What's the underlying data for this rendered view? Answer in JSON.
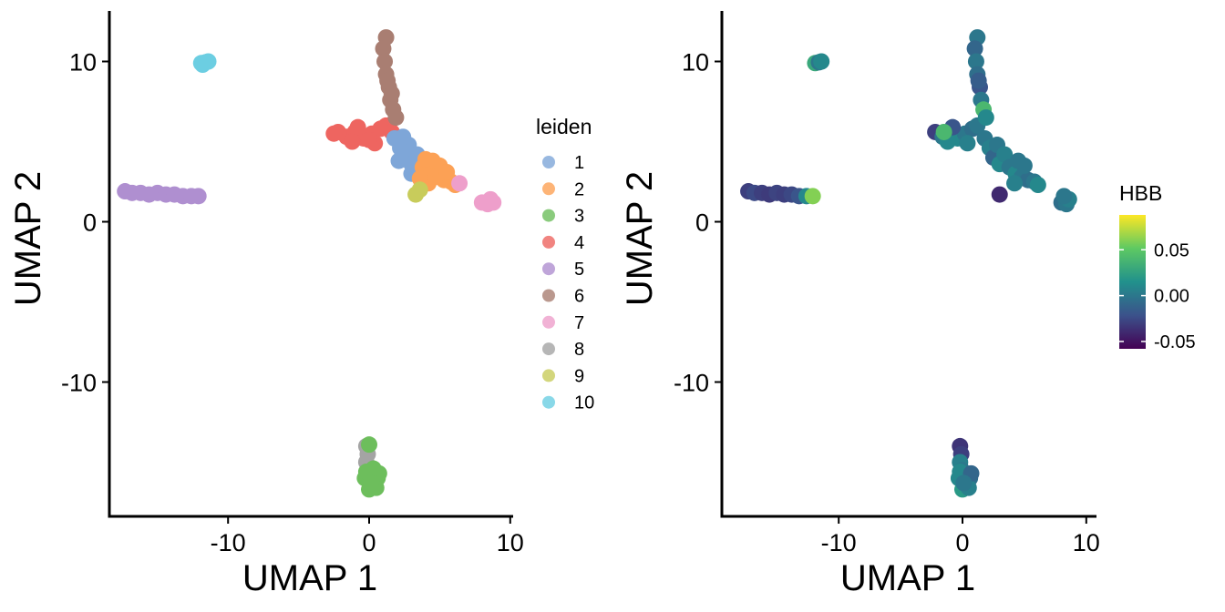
{
  "colors": {
    "clusters": {
      "1": "#7ea6d8",
      "2": "#fca155",
      "3": "#6dbe5c",
      "4": "#ee6560",
      "5": "#af8fd0",
      "6": "#a97e72",
      "7": "#ee9fcb",
      "8": "#a4a4a4",
      "9": "#c8cc5b",
      "10": "#6ccee2"
    },
    "viridis": [
      "#440154",
      "#3b528b",
      "#21918c",
      "#5ec962",
      "#fde725"
    ]
  },
  "chart_data": [
    {
      "type": "scatter",
      "xlabel": "UMAP 1",
      "ylabel": "UMAP 2",
      "xlim": [
        -18.5,
        10.3
      ],
      "ylim": [
        -18.5,
        13.2
      ],
      "xticks": [
        -10,
        0,
        10
      ],
      "xtick_labels": [
        "-10",
        "0",
        "10"
      ],
      "yticks": [
        -10,
        0,
        10
      ],
      "ytick_labels": [
        "-10",
        "0",
        "10"
      ],
      "grid": false,
      "legend": {
        "title": "leiden",
        "position": "right",
        "entries": [
          "1",
          "2",
          "3",
          "4",
          "5",
          "6",
          "7",
          "8",
          "9",
          "10"
        ]
      },
      "clusters": [
        {
          "name": "5",
          "points": [
            [
              -17.3,
              1.9
            ],
            [
              -16.8,
              1.8
            ],
            [
              -16.2,
              1.8
            ],
            [
              -15.6,
              1.7
            ],
            [
              -15.0,
              1.8
            ],
            [
              -14.4,
              1.7
            ],
            [
              -13.8,
              1.7
            ],
            [
              -13.2,
              1.6
            ],
            [
              -12.6,
              1.6
            ],
            [
              -12.1,
              1.6
            ]
          ]
        },
        {
          "name": "10",
          "points": [
            [
              -11.9,
              9.9
            ],
            [
              -11.6,
              9.95
            ],
            [
              -11.4,
              10.0
            ],
            [
              -11.8,
              9.8
            ]
          ]
        },
        {
          "name": "4",
          "points": [
            [
              -2.2,
              5.6
            ],
            [
              -1.6,
              5.3
            ],
            [
              -1.0,
              5.6
            ],
            [
              -0.4,
              5.2
            ],
            [
              0.2,
              5.5
            ],
            [
              0.8,
              5.8
            ],
            [
              1.2,
              6.0
            ],
            [
              -1.2,
              5.0
            ],
            [
              0.4,
              4.9
            ],
            [
              -2.5,
              5.5
            ],
            [
              1.6,
              5.6
            ],
            [
              -0.8,
              5.9
            ],
            [
              0.0,
              5.1
            ]
          ]
        },
        {
          "name": "6",
          "points": [
            [
              1.2,
              11.5
            ],
            [
              1.0,
              10.8
            ],
            [
              1.1,
              10.0
            ],
            [
              1.2,
              9.2
            ],
            [
              1.4,
              8.4
            ],
            [
              1.5,
              7.6
            ],
            [
              1.7,
              7.0
            ],
            [
              1.9,
              6.5
            ],
            [
              1.3,
              8.8
            ],
            [
              1.6,
              8.0
            ]
          ]
        },
        {
          "name": "1",
          "points": [
            [
              1.8,
              5.2
            ],
            [
              2.2,
              4.6
            ],
            [
              2.5,
              4.0
            ],
            [
              3.0,
              3.6
            ],
            [
              2.1,
              3.8
            ],
            [
              2.8,
              4.8
            ],
            [
              3.4,
              4.2
            ],
            [
              3.0,
              3.0
            ],
            [
              2.4,
              5.3
            ],
            [
              3.6,
              3.4
            ]
          ]
        },
        {
          "name": "2",
          "points": [
            [
              3.8,
              3.4
            ],
            [
              4.3,
              3.0
            ],
            [
              4.8,
              2.8
            ],
            [
              5.3,
              2.6
            ],
            [
              5.8,
              2.5
            ],
            [
              4.2,
              2.4
            ],
            [
              5.0,
              3.5
            ],
            [
              4.5,
              3.8
            ],
            [
              6.1,
              2.3
            ],
            [
              3.6,
              2.7
            ],
            [
              5.5,
              3.1
            ],
            [
              4.0,
              3.9
            ]
          ]
        },
        {
          "name": "9",
          "points": [
            [
              3.3,
              1.7
            ],
            [
              3.6,
              2.0
            ]
          ]
        },
        {
          "name": "7",
          "points": [
            [
              8.0,
              1.2
            ],
            [
              8.4,
              1.1
            ],
            [
              8.6,
              1.4
            ],
            [
              6.4,
              2.4
            ],
            [
              8.8,
              1.2
            ]
          ]
        },
        {
          "name": "8",
          "points": [
            [
              -0.2,
              -14.0
            ],
            [
              -0.1,
              -14.5
            ],
            [
              -0.2,
              -15.0
            ],
            [
              -0.05,
              -15.5
            ]
          ]
        },
        {
          "name": "3",
          "points": [
            [
              -0.3,
              -16.0
            ],
            [
              0.3,
              -16.2
            ],
            [
              0.6,
              -16.0
            ],
            [
              0.0,
              -16.7
            ],
            [
              0.5,
              -16.6
            ],
            [
              -0.2,
              -15.6
            ],
            [
              0.7,
              -15.7
            ],
            [
              0.3,
              -15.4
            ],
            [
              0.1,
              -16.3
            ],
            [
              0.0,
              -13.9
            ]
          ]
        }
      ]
    },
    {
      "type": "scatter",
      "xlabel": "UMAP 1",
      "ylabel": "UMAP 2",
      "xlim": [
        -18.5,
        10.3
      ],
      "ylim": [
        -18.5,
        13.2
      ],
      "xticks": [
        -10,
        0,
        10
      ],
      "xtick_labels": [
        "-10",
        "0",
        "10"
      ],
      "yticks": [
        -10,
        0,
        10
      ],
      "ytick_labels": [
        "-10",
        "0",
        "10"
      ],
      "grid": false,
      "colorbar": {
        "title": "HBB",
        "range": [
          -0.058,
          0.088
        ],
        "ticks": [
          -0.05,
          0.0,
          0.05
        ],
        "tick_labels": [
          "-0.05",
          "0.00",
          "0.05"
        ],
        "position": "right"
      },
      "points": [
        [
          -17.3,
          1.9,
          -0.03
        ],
        [
          -16.8,
          1.8,
          -0.025
        ],
        [
          -16.2,
          1.8,
          -0.03
        ],
        [
          -15.6,
          1.7,
          -0.032
        ],
        [
          -15.0,
          1.8,
          -0.028
        ],
        [
          -14.4,
          1.7,
          -0.03
        ],
        [
          -13.8,
          1.7,
          -0.026
        ],
        [
          -13.2,
          1.6,
          -0.02
        ],
        [
          -12.6,
          1.6,
          0.01
        ],
        [
          -12.1,
          1.6,
          0.06
        ],
        [
          -11.9,
          9.9,
          0.03
        ],
        [
          -11.6,
          9.95,
          0.0
        ],
        [
          -11.4,
          10.0,
          0.01
        ],
        [
          -2.2,
          5.6,
          -0.03
        ],
        [
          -1.6,
          5.3,
          0.0
        ],
        [
          -1.0,
          5.6,
          -0.01
        ],
        [
          -0.4,
          5.2,
          0.01
        ],
        [
          0.2,
          5.5,
          0.0
        ],
        [
          0.8,
          5.8,
          -0.005
        ],
        [
          1.2,
          6.0,
          0.0
        ],
        [
          -1.2,
          5.0,
          0.01
        ],
        [
          0.4,
          4.9,
          0.005
        ],
        [
          -0.8,
          5.9,
          -0.02
        ],
        [
          -1.5,
          5.6,
          0.04
        ],
        [
          1.2,
          11.5,
          0.0
        ],
        [
          1.0,
          10.8,
          -0.01
        ],
        [
          1.1,
          10.0,
          0.0
        ],
        [
          1.2,
          9.2,
          -0.005
        ],
        [
          1.4,
          8.4,
          -0.02
        ],
        [
          1.5,
          7.6,
          0.0
        ],
        [
          1.7,
          7.0,
          0.04
        ],
        [
          1.9,
          6.5,
          0.01
        ],
        [
          1.3,
          8.8,
          -0.015
        ],
        [
          1.8,
          5.2,
          0.0
        ],
        [
          2.2,
          4.6,
          0.005
        ],
        [
          2.5,
          4.0,
          -0.01
        ],
        [
          3.0,
          3.6,
          0.01
        ],
        [
          2.8,
          4.8,
          0.0
        ],
        [
          3.4,
          4.2,
          0.005
        ],
        [
          3.0,
          1.7,
          -0.04
        ],
        [
          3.8,
          3.4,
          0.0
        ],
        [
          4.3,
          3.0,
          0.01
        ],
        [
          4.8,
          2.8,
          0.0
        ],
        [
          5.3,
          2.6,
          -0.005
        ],
        [
          5.8,
          2.5,
          0.0
        ],
        [
          4.2,
          2.4,
          0.005
        ],
        [
          5.0,
          3.5,
          0.0
        ],
        [
          6.1,
          2.3,
          0.01
        ],
        [
          4.5,
          3.8,
          0.0
        ],
        [
          8.0,
          1.2,
          -0.005
        ],
        [
          8.4,
          1.1,
          0.0
        ],
        [
          8.6,
          1.4,
          0.005
        ],
        [
          8.2,
          1.6,
          0.0
        ],
        [
          -0.2,
          -14.0,
          -0.035
        ],
        [
          -0.1,
          -14.5,
          -0.03
        ],
        [
          -0.2,
          -15.0,
          0.005
        ],
        [
          -0.05,
          -15.5,
          0.0
        ],
        [
          -0.3,
          -16.0,
          0.01
        ],
        [
          0.3,
          -16.2,
          0.0
        ],
        [
          0.6,
          -16.0,
          -0.005
        ],
        [
          0.0,
          -16.7,
          0.02
        ],
        [
          0.5,
          -16.6,
          0.005
        ],
        [
          -0.2,
          -15.6,
          0.01
        ],
        [
          0.7,
          -15.7,
          -0.01
        ],
        [
          0.1,
          -16.3,
          0.0
        ]
      ]
    }
  ]
}
